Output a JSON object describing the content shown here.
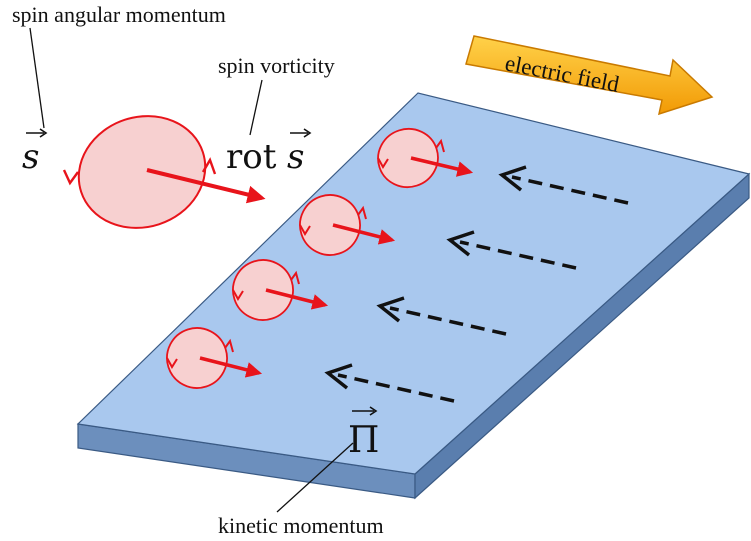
{
  "labels": {
    "spin_angular_momentum": "spin angular momentum",
    "spin_vorticity": "spin vorticity",
    "electric_field": "electric field",
    "kinetic_momentum": "kinetic momentum",
    "s_symbol": "s",
    "rot_word": "rot",
    "rot_s_symbol": "s",
    "pi_symbol": "Π"
  },
  "colors": {
    "slab_top": "#a9c8ee",
    "slab_side": "#6c8fbd",
    "slab_edge": "#3a5a84",
    "vortex_fill": "#f7d0d0",
    "vortex_stroke": "#e8141b",
    "arrow_banner": "#f7a608",
    "arrow_banner_light": "#ffd24a",
    "dashed_arrow": "#111111"
  },
  "icons": {
    "vortex": "spin-vortex-icon",
    "field_arrow": "electric-field-arrow-icon"
  }
}
